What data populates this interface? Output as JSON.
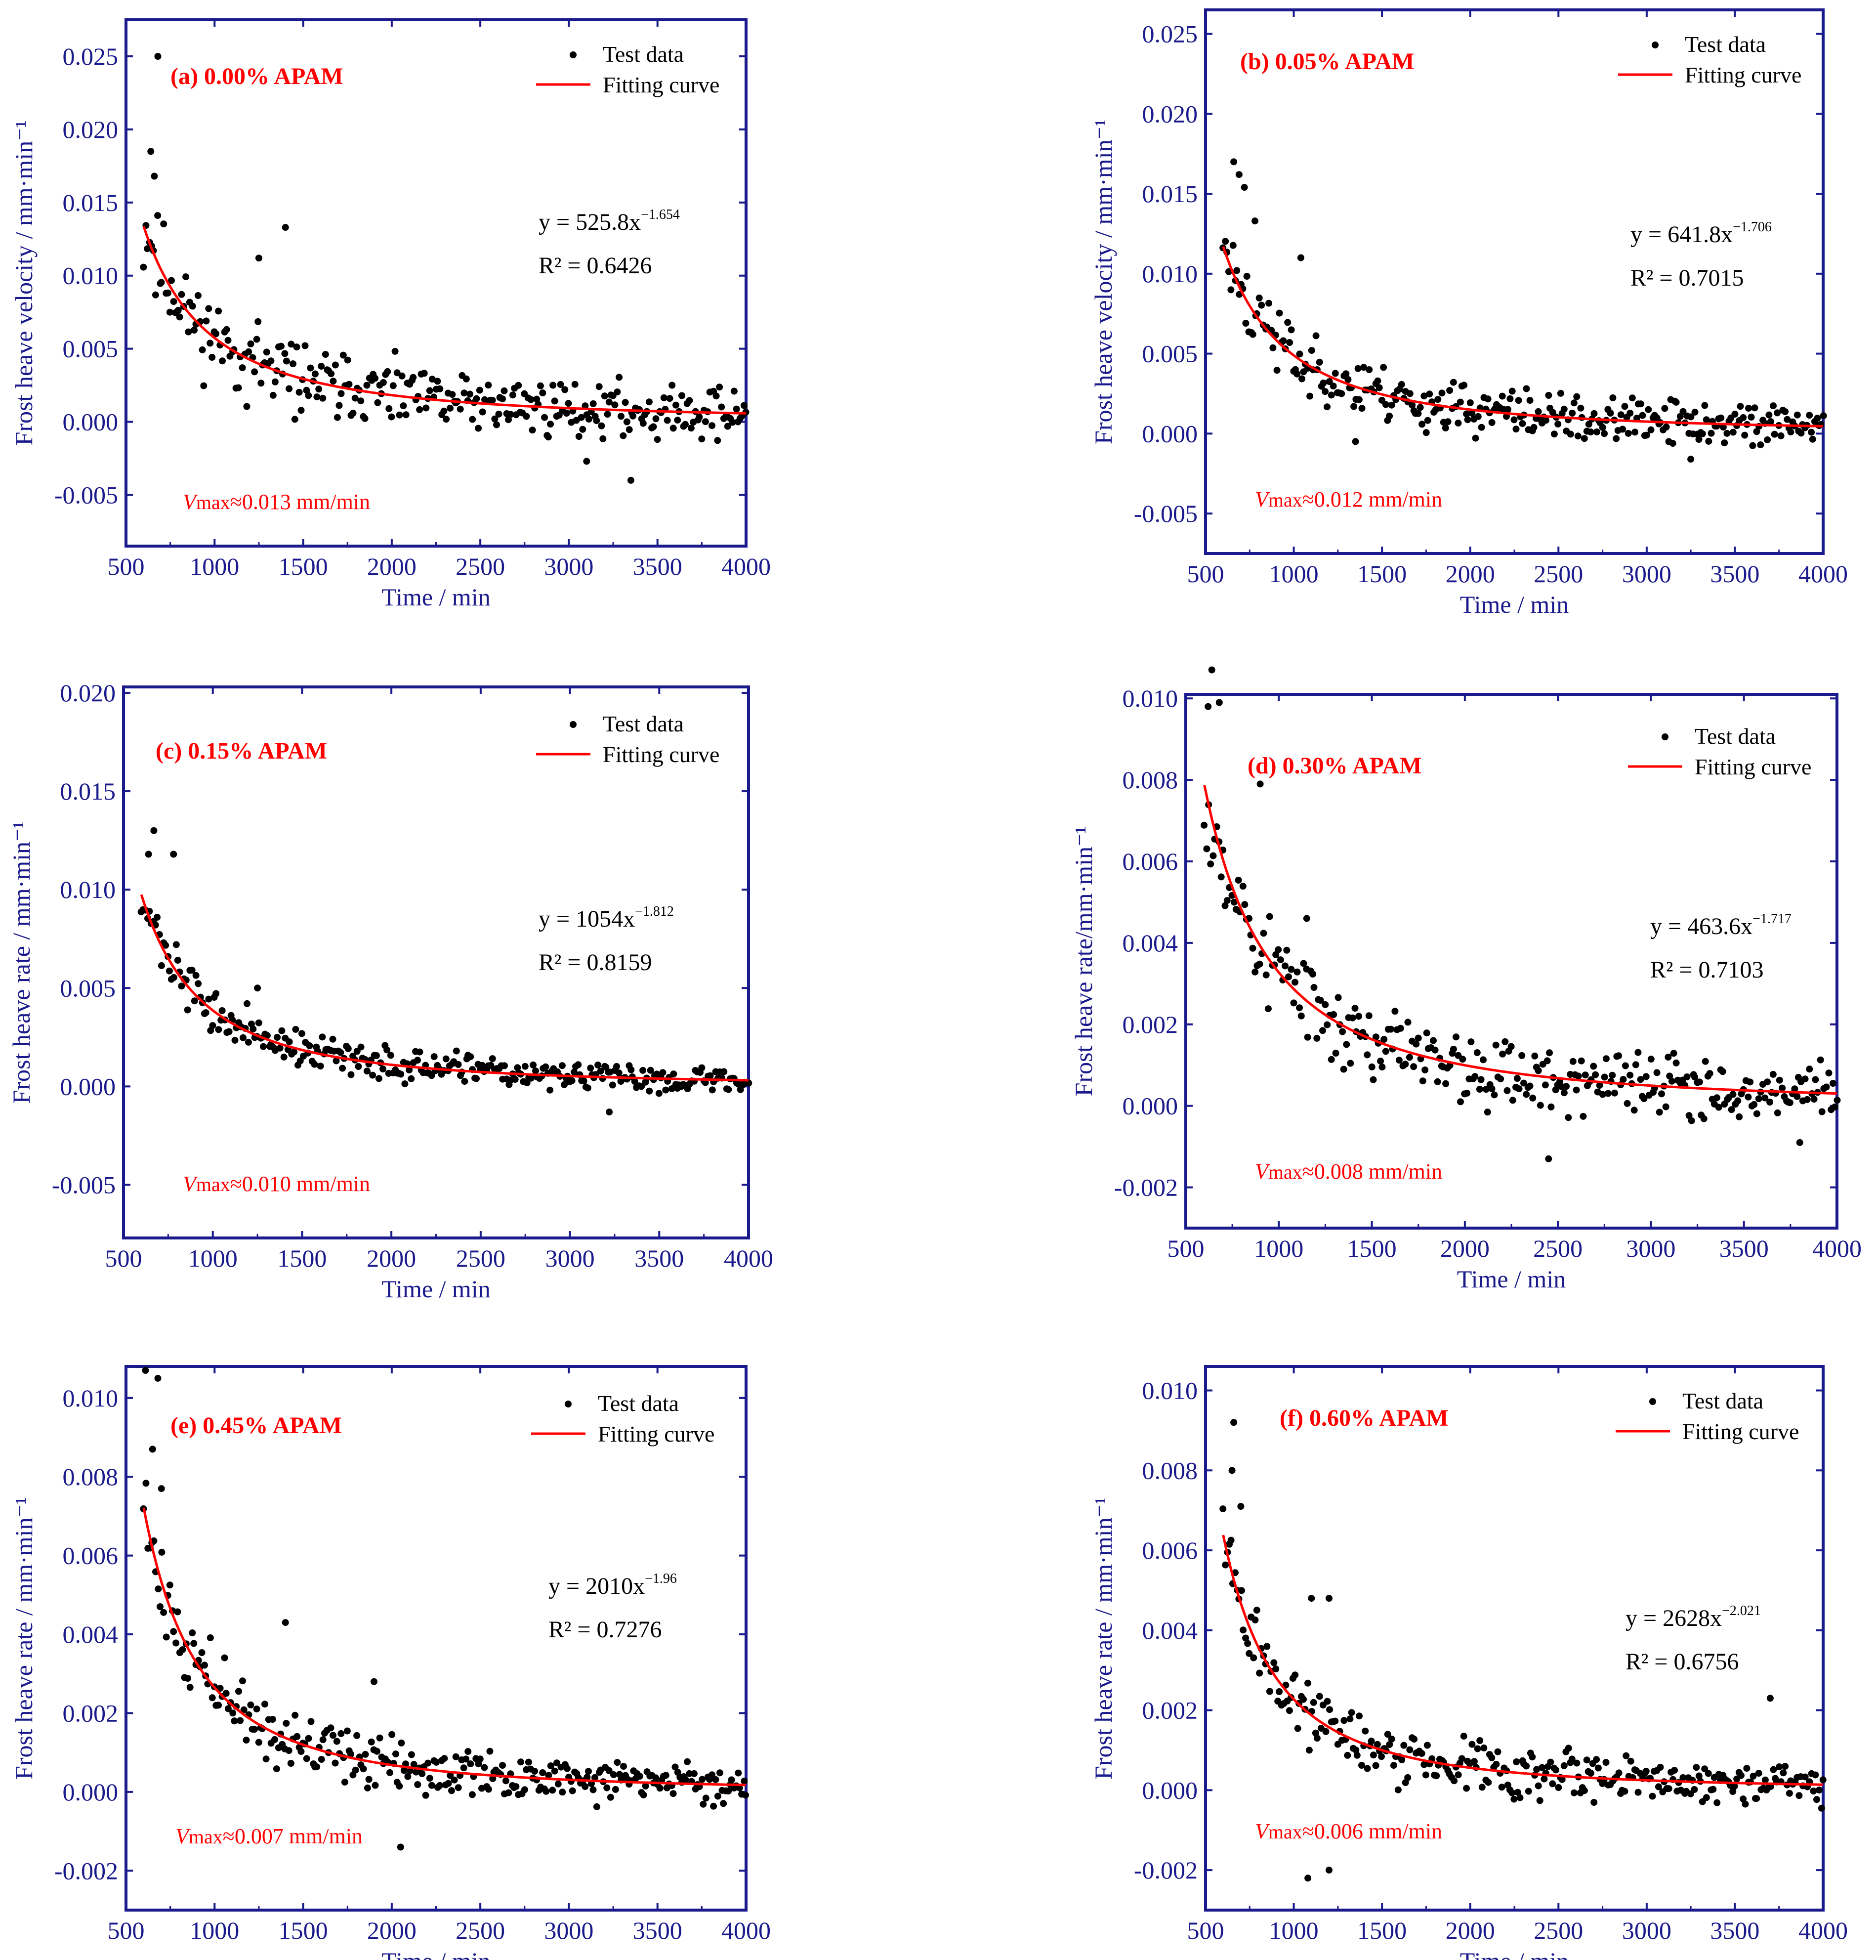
{
  "colors": {
    "frame": "#1a1a8c",
    "points": "#000000",
    "fit": "#ff0000",
    "accent": "#ff0000"
  },
  "chart_data": [
    {
      "id": "a",
      "type": "scatter",
      "panel_label": "(a) 0.00% APAM",
      "xlabel": "Time / min",
      "ylabel": "Frost heave velocity / mm·min⁻¹",
      "xlim": [
        500,
        4000
      ],
      "ylim": [
        -0.0085,
        0.0275
      ],
      "xticks": [
        "500",
        "1000",
        "1500",
        "2000",
        "2500",
        "3000",
        "3500",
        "4000"
      ],
      "yticks": [
        -0.005,
        0.0,
        0.005,
        0.01,
        0.015,
        0.02,
        0.025
      ],
      "ytick_labels": [
        "-0.005",
        "0.000",
        "0.005",
        "0.010",
        "0.015",
        "0.020",
        "0.025"
      ],
      "legend": {
        "points": "Test data",
        "line": "Fitting curve"
      },
      "fit": {
        "a": 525.8,
        "b": -1.654,
        "eq_prefix": "y = 525.8x",
        "eq_exp": "−1.654",
        "r2": "R² = 0.6426"
      },
      "vmax": {
        "v": "V",
        "sub": "max",
        "rest": "≈0.013 mm/min"
      },
      "noise": 0.0026,
      "seed": 11,
      "outliers": [
        [
          680,
          0.025
        ],
        [
          640,
          0.0185
        ],
        [
          660,
          0.0168
        ],
        [
          1400,
          0.0133
        ],
        [
          1250,
          0.0112
        ],
        [
          3350,
          -0.004
        ],
        [
          3100,
          -0.0027
        ]
      ]
    },
    {
      "id": "b",
      "type": "scatter",
      "panel_label": "(b) 0.05% APAM",
      "xlabel": "Time / min",
      "ylabel": "Frost heave velocity / mm·min⁻¹",
      "xlim": [
        500,
        4000
      ],
      "ylim": [
        -0.0075,
        0.0265
      ],
      "xticks": [
        "500",
        "1000",
        "1500",
        "2000",
        "2500",
        "3000",
        "3500",
        "4000"
      ],
      "yticks": [
        -0.005,
        0.0,
        0.005,
        0.01,
        0.015,
        0.02,
        0.025
      ],
      "ytick_labels": [
        "-0.005",
        "0.000",
        "0.005",
        "0.010",
        "0.015",
        "0.020",
        "0.025"
      ],
      "legend": {
        "points": "Test data",
        "line": "Fitting curve"
      },
      "fit": {
        "a": 641.8,
        "b": -1.706,
        "eq_prefix": "y = 641.8x",
        "eq_exp": "−1.706",
        "r2": "R² = 0.7015"
      },
      "vmax": {
        "v": "V",
        "sub": "max",
        "rest": "≈0.012 mm/min"
      },
      "noise": 0.0019,
      "seed": 23,
      "outliers": [
        [
          660,
          0.017
        ],
        [
          690,
          0.0162
        ],
        [
          720,
          0.0154
        ],
        [
          780,
          0.0133
        ],
        [
          1040,
          0.011
        ],
        [
          1350,
          -0.0005
        ],
        [
          3250,
          -0.0016
        ]
      ]
    },
    {
      "id": "c",
      "type": "scatter",
      "panel_label": "(c) 0.15% APAM",
      "xlabel": "Time / min",
      "ylabel": "Frost heave rate / mm·min⁻¹",
      "xlim": [
        500,
        4000
      ],
      "ylim": [
        -0.0077,
        0.0203
      ],
      "xticks": [
        "500",
        "1000",
        "1500",
        "2000",
        "2500",
        "3000",
        "3500",
        "4000"
      ],
      "yticks": [
        -0.005,
        0.0,
        0.005,
        0.01,
        0.015,
        0.02
      ],
      "ytick_labels": [
        "-0.005",
        "0.000",
        "0.005",
        "0.010",
        "0.015",
        "0.020"
      ],
      "legend": {
        "points": "Test data",
        "line": "Fitting curve"
      },
      "fit": {
        "a": 1054,
        "b": -1.812,
        "eq_prefix": "y = 1054x",
        "eq_exp": "−1.812",
        "r2": "R² = 0.8159"
      },
      "vmax": {
        "v": "V",
        "sub": "max",
        "rest": "≈0.010 mm/min"
      },
      "noise": 0.001,
      "seed": 37,
      "outliers": [
        [
          670,
          0.013
        ],
        [
          640,
          0.0118
        ],
        [
          780,
          0.0118
        ],
        [
          1250,
          0.005
        ],
        [
          3220,
          -0.0013
        ]
      ]
    },
    {
      "id": "d",
      "type": "scatter",
      "panel_label": "(d) 0.30% APAM",
      "xlabel": "Time / min",
      "ylabel": "Frost heave rate/mm·min⁻¹",
      "xlim": [
        500,
        4000
      ],
      "ylim": [
        -0.003,
        0.0101
      ],
      "xticks": [
        "500",
        "1000",
        "1500",
        "2000",
        "2500",
        "3000",
        "3500",
        "4000"
      ],
      "yticks": [
        -0.002,
        0.0,
        0.002,
        0.004,
        0.006,
        0.008,
        0.01
      ],
      "ytick_labels": [
        "-0.002",
        "0.000",
        "0.002",
        "0.004",
        "0.006",
        "0.008",
        "0.010"
      ],
      "legend": {
        "points": "Test data",
        "line": "Fitting curve"
      },
      "fit": {
        "a": 463.6,
        "b": -1.717,
        "eq_prefix": "y = 463.6x",
        "eq_exp": "−1.717",
        "r2": "R² = 0.7103"
      },
      "vmax": {
        "v": "V",
        "sub": "max",
        "rest": "≈0.008 mm/min"
      },
      "noise": 0.0011,
      "seed": 53,
      "outliers": [
        [
          640,
          0.0107
        ],
        [
          620,
          0.0098
        ],
        [
          680,
          0.0099
        ],
        [
          900,
          0.0079
        ],
        [
          1150,
          0.0046
        ],
        [
          2450,
          -0.0013
        ],
        [
          3800,
          -0.0009
        ]
      ]
    },
    {
      "id": "e",
      "type": "scatter",
      "panel_label": "(e) 0.45% APAM",
      "xlabel": "Time / min",
      "ylabel": "Frost heave rate / mm·min⁻¹",
      "xlim": [
        500,
        4000
      ],
      "ylim": [
        -0.003,
        0.0108
      ],
      "xticks": [
        "500",
        "1000",
        "1500",
        "2000",
        "2500",
        "3000",
        "3500",
        "4000"
      ],
      "yticks": [
        -0.002,
        0.0,
        0.002,
        0.004,
        0.006,
        0.008,
        0.01
      ],
      "ytick_labels": [
        "-0.002",
        "0.000",
        "0.002",
        "0.004",
        "0.006",
        "0.008",
        "0.010"
      ],
      "legend": {
        "points": "Test data",
        "line": "Fitting curve"
      },
      "fit": {
        "a": 2010,
        "b": -1.96,
        "eq_prefix": "y = 2010x",
        "eq_exp": "−1.96",
        "r2": "R² = 0.7276"
      },
      "vmax": {
        "v": "V",
        "sub": "max",
        "rest": "≈0.007 mm/min"
      },
      "noise": 0.0008,
      "seed": 71,
      "outliers": [
        [
          610,
          0.0107
        ],
        [
          680,
          0.0105
        ],
        [
          650,
          0.0087
        ],
        [
          700,
          0.0077
        ],
        [
          1400,
          0.0043
        ],
        [
          1900,
          0.0028
        ],
        [
          2050,
          -0.0014
        ]
      ]
    },
    {
      "id": "f",
      "type": "scatter",
      "panel_label": "(f) 0.60% APAM",
      "xlabel": "Time / min",
      "ylabel": "Frost heave rate / mm·min⁻¹",
      "xlim": [
        500,
        4000
      ],
      "ylim": [
        -0.003,
        0.0106
      ],
      "xticks": [
        "500",
        "1000",
        "1500",
        "2000",
        "2500",
        "3000",
        "3500",
        "4000"
      ],
      "yticks": [
        -0.002,
        0.0,
        0.002,
        0.004,
        0.006,
        0.008,
        0.01
      ],
      "ytick_labels": [
        "-0.002",
        "0.000",
        "0.002",
        "0.004",
        "0.006",
        "0.008",
        "0.010"
      ],
      "legend": {
        "points": "Test data",
        "line": "Fitting curve"
      },
      "fit": {
        "a": 2628,
        "b": -2.021,
        "eq_prefix": "y = 2628x",
        "eq_exp": "−2.021",
        "r2": "R² = 0.6756"
      },
      "vmax": {
        "v": "V",
        "sub": "max",
        "rest": "≈0.006 mm/min"
      },
      "noise": 0.0008,
      "seed": 89,
      "outliers": [
        [
          660,
          0.0092
        ],
        [
          650,
          0.008
        ],
        [
          700,
          0.0071
        ],
        [
          1100,
          0.0048
        ],
        [
          1200,
          0.0048
        ],
        [
          1080,
          -0.0022
        ],
        [
          1200,
          -0.002
        ],
        [
          3700,
          0.0023
        ]
      ]
    }
  ]
}
